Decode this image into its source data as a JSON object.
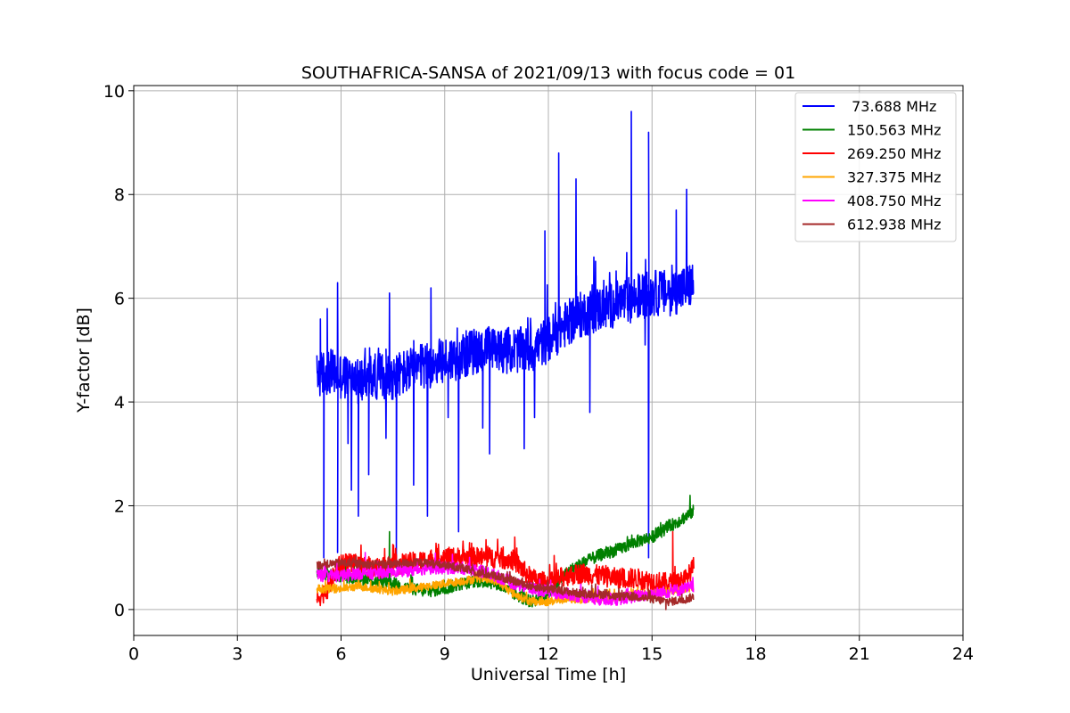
{
  "chart_data": {
    "type": "line",
    "title": "SOUTHAFRICA-SANSA of 2021/09/13 with focus code = 01",
    "xlabel": "Universal Time [h]",
    "ylabel": "Y-factor [dB]",
    "xlim": [
      0,
      24
    ],
    "ylim": [
      -0.5,
      10.1
    ],
    "xticks": [
      0,
      3,
      6,
      9,
      12,
      15,
      18,
      21,
      24
    ],
    "yticks": [
      0,
      2,
      4,
      6,
      8,
      10
    ],
    "grid": true,
    "legend_position": "top-right",
    "series": [
      {
        "name": " 73.688 MHz",
        "color": "#0000ff",
        "points": [
          [
            5.3,
            4.5
          ],
          [
            5.6,
            4.6
          ],
          [
            6.0,
            4.5
          ],
          [
            6.5,
            4.4
          ],
          [
            7.0,
            4.5
          ],
          [
            7.5,
            4.5
          ],
          [
            8.0,
            4.6
          ],
          [
            8.5,
            4.7
          ],
          [
            9.0,
            4.8
          ],
          [
            9.5,
            4.9
          ],
          [
            10.0,
            5.0
          ],
          [
            10.5,
            5.0
          ],
          [
            11.0,
            5.0
          ],
          [
            11.5,
            5.0
          ],
          [
            12.0,
            5.2
          ],
          [
            12.5,
            5.5
          ],
          [
            13.0,
            5.7
          ],
          [
            13.5,
            5.8
          ],
          [
            14.0,
            5.9
          ],
          [
            14.5,
            6.0
          ],
          [
            15.0,
            6.1
          ],
          [
            15.5,
            6.1
          ],
          [
            16.0,
            6.2
          ],
          [
            16.2,
            6.3
          ]
        ],
        "spikes": [
          [
            5.4,
            5.6
          ],
          [
            5.5,
            1.0
          ],
          [
            5.6,
            5.8
          ],
          [
            5.9,
            6.3
          ],
          [
            5.9,
            1.1
          ],
          [
            6.2,
            3.2
          ],
          [
            6.3,
            2.3
          ],
          [
            6.5,
            1.8
          ],
          [
            6.8,
            2.6
          ],
          [
            7.3,
            3.3
          ],
          [
            7.4,
            6.1
          ],
          [
            7.6,
            0.8
          ],
          [
            8.1,
            2.4
          ],
          [
            8.5,
            1.8
          ],
          [
            8.6,
            6.2
          ],
          [
            9.1,
            3.7
          ],
          [
            9.4,
            1.5
          ],
          [
            10.1,
            3.5
          ],
          [
            10.3,
            3.0
          ],
          [
            11.3,
            3.1
          ],
          [
            11.6,
            3.7
          ],
          [
            11.9,
            7.3
          ],
          [
            12.3,
            8.8
          ],
          [
            12.8,
            8.3
          ],
          [
            13.2,
            3.8
          ],
          [
            14.4,
            9.6
          ],
          [
            14.8,
            5.1
          ],
          [
            14.9,
            1.0
          ],
          [
            14.9,
            9.2
          ],
          [
            15.7,
            7.7
          ],
          [
            16.0,
            8.1
          ]
        ],
        "noise": 0.45
      },
      {
        "name": "150.563 MHz",
        "color": "#008000",
        "points": [
          [
            5.3,
            0.7
          ],
          [
            6.0,
            0.65
          ],
          [
            6.5,
            0.6
          ],
          [
            7.0,
            0.55
          ],
          [
            7.5,
            0.5
          ],
          [
            8.0,
            0.4
          ],
          [
            8.5,
            0.35
          ],
          [
            9.0,
            0.4
          ],
          [
            9.5,
            0.5
          ],
          [
            10.0,
            0.55
          ],
          [
            10.5,
            0.5
          ],
          [
            11.0,
            0.3
          ],
          [
            11.5,
            0.15
          ],
          [
            12.0,
            0.3
          ],
          [
            12.5,
            0.7
          ],
          [
            13.0,
            0.9
          ],
          [
            13.5,
            1.05
          ],
          [
            14.0,
            1.15
          ],
          [
            14.5,
            1.3
          ],
          [
            15.0,
            1.4
          ],
          [
            15.5,
            1.6
          ],
          [
            16.0,
            1.8
          ],
          [
            16.2,
            1.9
          ]
        ],
        "spikes": [
          [
            7.4,
            1.5
          ],
          [
            16.1,
            2.2
          ]
        ],
        "noise": 0.12
      },
      {
        "name": "269.250 MHz",
        "color": "#ff0000",
        "points": [
          [
            5.3,
            0.2
          ],
          [
            5.6,
            0.4
          ],
          [
            6.0,
            0.9
          ],
          [
            6.5,
            0.85
          ],
          [
            7.0,
            0.8
          ],
          [
            7.5,
            0.85
          ],
          [
            8.0,
            0.9
          ],
          [
            8.5,
            0.95
          ],
          [
            9.0,
            1.0
          ],
          [
            9.5,
            1.0
          ],
          [
            10.0,
            1.0
          ],
          [
            10.5,
            1.0
          ],
          [
            11.0,
            0.95
          ],
          [
            11.5,
            0.6
          ],
          [
            12.0,
            0.5
          ],
          [
            12.5,
            0.65
          ],
          [
            13.0,
            0.7
          ],
          [
            13.5,
            0.65
          ],
          [
            14.0,
            0.6
          ],
          [
            14.5,
            0.6
          ],
          [
            15.0,
            0.55
          ],
          [
            15.5,
            0.5
          ],
          [
            16.0,
            0.6
          ],
          [
            16.2,
            0.8
          ]
        ],
        "spikes": [
          [
            15.6,
            1.5
          ],
          [
            16.2,
            1.0
          ]
        ],
        "noise": 0.2
      },
      {
        "name": "327.375 MHz",
        "color": "#ffa500",
        "points": [
          [
            5.3,
            0.4
          ],
          [
            6.0,
            0.4
          ],
          [
            6.5,
            0.45
          ],
          [
            7.0,
            0.4
          ],
          [
            7.5,
            0.35
          ],
          [
            8.0,
            0.4
          ],
          [
            8.5,
            0.45
          ],
          [
            9.0,
            0.5
          ],
          [
            9.5,
            0.55
          ],
          [
            10.0,
            0.6
          ],
          [
            10.5,
            0.55
          ],
          [
            11.0,
            0.3
          ],
          [
            11.5,
            0.15
          ],
          [
            12.0,
            0.15
          ],
          [
            12.5,
            0.2
          ],
          [
            13.0,
            0.2
          ],
          [
            13.5,
            0.2
          ],
          [
            14.0,
            0.25
          ],
          [
            14.5,
            0.3
          ],
          [
            15.0,
            0.3
          ],
          [
            15.5,
            0.35
          ],
          [
            16.0,
            0.4
          ],
          [
            16.2,
            0.45
          ]
        ],
        "spikes": [],
        "noise": 0.08
      },
      {
        "name": "408.750 MHz",
        "color": "#ff00ff",
        "points": [
          [
            5.3,
            0.65
          ],
          [
            6.0,
            0.65
          ],
          [
            6.5,
            0.7
          ],
          [
            7.0,
            0.7
          ],
          [
            7.5,
            0.75
          ],
          [
            8.0,
            0.75
          ],
          [
            8.5,
            0.8
          ],
          [
            9.0,
            0.8
          ],
          [
            9.5,
            0.8
          ],
          [
            10.0,
            0.75
          ],
          [
            10.5,
            0.65
          ],
          [
            11.0,
            0.5
          ],
          [
            11.5,
            0.4
          ],
          [
            12.0,
            0.35
          ],
          [
            12.5,
            0.3
          ],
          [
            13.0,
            0.25
          ],
          [
            13.5,
            0.2
          ],
          [
            14.0,
            0.2
          ],
          [
            14.5,
            0.25
          ],
          [
            15.0,
            0.3
          ],
          [
            15.5,
            0.35
          ],
          [
            16.0,
            0.4
          ],
          [
            16.2,
            0.45
          ]
        ],
        "spikes": [
          [
            6.7,
            1.1
          ]
        ],
        "noise": 0.12
      },
      {
        "name": "612.938 MHz",
        "color": "#a52a2a",
        "points": [
          [
            5.3,
            0.85
          ],
          [
            6.0,
            0.9
          ],
          [
            6.5,
            0.88
          ],
          [
            7.0,
            0.87
          ],
          [
            7.5,
            0.88
          ],
          [
            8.0,
            0.9
          ],
          [
            8.5,
            0.9
          ],
          [
            9.0,
            0.85
          ],
          [
            9.5,
            0.8
          ],
          [
            10.0,
            0.7
          ],
          [
            10.5,
            0.65
          ],
          [
            11.0,
            0.55
          ],
          [
            11.5,
            0.45
          ],
          [
            12.0,
            0.4
          ],
          [
            12.5,
            0.35
          ],
          [
            13.0,
            0.3
          ],
          [
            13.5,
            0.3
          ],
          [
            14.0,
            0.25
          ],
          [
            14.5,
            0.25
          ],
          [
            15.0,
            0.2
          ],
          [
            15.5,
            0.15
          ],
          [
            16.0,
            0.2
          ],
          [
            16.2,
            0.25
          ]
        ],
        "spikes": [
          [
            15.4,
            0.0
          ]
        ],
        "noise": 0.08
      }
    ]
  }
}
